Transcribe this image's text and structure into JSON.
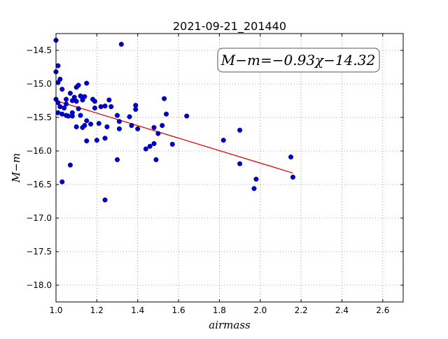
{
  "chart_data": {
    "type": "scatter",
    "title": "2021-09-21_201440",
    "xlabel": "airmass",
    "ylabel": "M−m",
    "xlim": [
      1.0,
      2.7
    ],
    "ylim": [
      -18.25,
      -14.25
    ],
    "y_inverted": true,
    "grid": true,
    "xticks": [
      "1.0",
      "1.2",
      "1.4",
      "1.6",
      "1.8",
      "2.0",
      "2.2",
      "2.4",
      "2.6"
    ],
    "yticks": [
      "−14.5",
      "−15.0",
      "−15.5",
      "−16.0",
      "−16.5",
      "−17.0",
      "−17.5",
      "−18.0"
    ],
    "annotation": "M−m=−0.93χ−14.32",
    "annotation_placement": "top-right",
    "point_color": "#0000cc",
    "fit_color": "#dd0000",
    "fit": {
      "slope": -0.93,
      "intercept": -14.32,
      "x": [
        1.0,
        2.16
      ]
    },
    "points": [
      [
        1.0,
        -14.35
      ],
      [
        1.0,
        -14.82
      ],
      [
        1.01,
        -14.73
      ],
      [
        1.01,
        -14.98
      ],
      [
        1.02,
        -14.93
      ],
      [
        1.0,
        -15.23
      ],
      [
        1.01,
        -15.28
      ],
      [
        1.02,
        -15.34
      ],
      [
        1.01,
        -15.43
      ],
      [
        1.03,
        -15.08
      ],
      [
        1.03,
        -15.45
      ],
      [
        1.05,
        -15.23
      ],
      [
        1.05,
        -15.3
      ],
      [
        1.04,
        -15.36
      ],
      [
        1.05,
        -15.47
      ],
      [
        1.06,
        -15.48
      ],
      [
        1.07,
        -15.14
      ],
      [
        1.08,
        -15.25
      ],
      [
        1.08,
        -15.43
      ],
      [
        1.09,
        -15.2
      ],
      [
        1.1,
        -15.05
      ],
      [
        1.1,
        -15.26
      ],
      [
        1.11,
        -15.02
      ],
      [
        1.11,
        -15.37
      ],
      [
        1.12,
        -15.18
      ],
      [
        1.12,
        -15.47
      ],
      [
        1.13,
        -15.24
      ],
      [
        1.13,
        -15.65
      ],
      [
        1.14,
        -15.19
      ],
      [
        1.14,
        -15.62
      ],
      [
        1.15,
        -15.55
      ],
      [
        1.15,
        -15.85
      ],
      [
        1.15,
        -14.99
      ],
      [
        1.17,
        -15.6
      ],
      [
        1.18,
        -15.23
      ],
      [
        1.19,
        -15.26
      ],
      [
        1.19,
        -15.36
      ],
      [
        1.2,
        -15.84
      ],
      [
        1.21,
        -15.59
      ],
      [
        1.22,
        -15.34
      ],
      [
        1.24,
        -15.33
      ],
      [
        1.24,
        -15.81
      ],
      [
        1.25,
        -15.64
      ],
      [
        1.26,
        -15.24
      ],
      [
        1.27,
        -15.34
      ],
      [
        1.1,
        -15.64
      ],
      [
        1.08,
        -15.48
      ],
      [
        1.07,
        -16.21
      ],
      [
        1.03,
        -16.46
      ],
      [
        1.24,
        -16.73
      ],
      [
        1.3,
        -15.47
      ],
      [
        1.31,
        -15.56
      ],
      [
        1.31,
        -15.67
      ],
      [
        1.3,
        -16.13
      ],
      [
        1.32,
        -14.41
      ],
      [
        1.36,
        -15.49
      ],
      [
        1.37,
        -15.62
      ],
      [
        1.39,
        -15.32
      ],
      [
        1.39,
        -15.38
      ],
      [
        1.4,
        -15.67
      ],
      [
        1.44,
        -15.97
      ],
      [
        1.46,
        -15.93
      ],
      [
        1.48,
        -15.65
      ],
      [
        1.48,
        -15.89
      ],
      [
        1.49,
        -16.13
      ],
      [
        1.5,
        -15.74
      ],
      [
        1.52,
        -15.62
      ],
      [
        1.53,
        -15.22
      ],
      [
        1.54,
        -15.45
      ],
      [
        1.57,
        -15.9
      ],
      [
        1.64,
        -15.48
      ],
      [
        1.82,
        -15.84
      ],
      [
        1.9,
        -15.69
      ],
      [
        1.9,
        -16.19
      ],
      [
        1.97,
        -16.56
      ],
      [
        1.98,
        -16.42
      ],
      [
        2.15,
        -16.09
      ],
      [
        2.16,
        -16.39
      ]
    ]
  }
}
